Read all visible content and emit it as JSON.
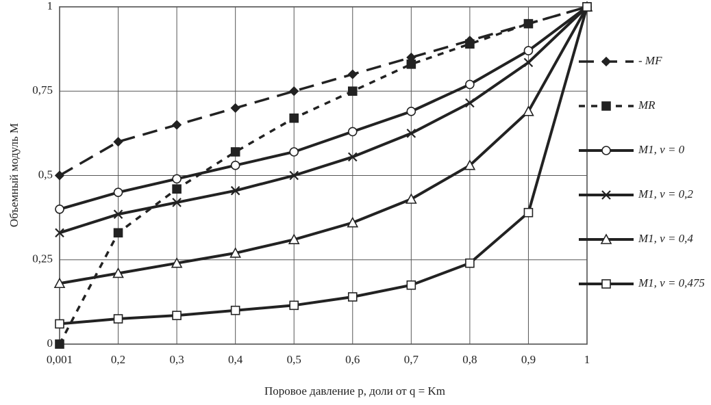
{
  "chart_data": {
    "type": "line",
    "x_label": "Поровое давление p, доли от q = Km",
    "y_label": "Объемный модуль M",
    "categories": [
      "0,001",
      "0,2",
      "0,3",
      "0,4",
      "0,5",
      "0,6",
      "0,7",
      "0,8",
      "0,9",
      "1"
    ],
    "ylim": [
      0,
      1
    ],
    "yticks": [
      0,
      {
        "value": 0.25,
        "label": "0,25"
      },
      {
        "value": 0.5,
        "label": "0,5"
      },
      {
        "value": 0.75,
        "label": "0,75"
      },
      1
    ],
    "grid": true,
    "legend": "right",
    "series": [
      {
        "name": "- MF",
        "color": "#222222",
        "line_style": "long-dash",
        "marker": "diamond",
        "values": [
          0.5,
          0.6,
          0.65,
          0.7,
          0.75,
          0.8,
          0.85,
          0.9,
          0.95,
          1
        ]
      },
      {
        "name": "MR",
        "color": "#222222",
        "line_style": "short-dash",
        "marker": "filled-square",
        "values": [
          0,
          0.33,
          0.46,
          0.57,
          0.67,
          0.75,
          0.83,
          0.89,
          0.95,
          1
        ]
      },
      {
        "name": "M1, ν = 0",
        "color": "#222222",
        "line_style": "solid",
        "marker": "circle",
        "values": [
          0.4,
          0.45,
          0.49,
          0.53,
          0.57,
          0.63,
          0.69,
          0.77,
          0.87,
          1
        ]
      },
      {
        "name": "M1, ν = 0,2",
        "color": "#222222",
        "line_style": "solid",
        "marker": "cross",
        "values": [
          0.33,
          0.385,
          0.42,
          0.455,
          0.5,
          0.555,
          0.625,
          0.715,
          0.835,
          1
        ]
      },
      {
        "name": "M1, ν = 0,4",
        "color": "#222222",
        "line_style": "solid",
        "marker": "triangle",
        "values": [
          0.18,
          0.21,
          0.24,
          0.27,
          0.31,
          0.36,
          0.43,
          0.53,
          0.69,
          1
        ]
      },
      {
        "name": "M1, ν = 0,475",
        "color": "#222222",
        "line_style": "solid",
        "marker": "square",
        "values": [
          0.06,
          0.075,
          0.085,
          0.1,
          0.115,
          0.14,
          0.175,
          0.24,
          0.39,
          1
        ]
      }
    ]
  }
}
